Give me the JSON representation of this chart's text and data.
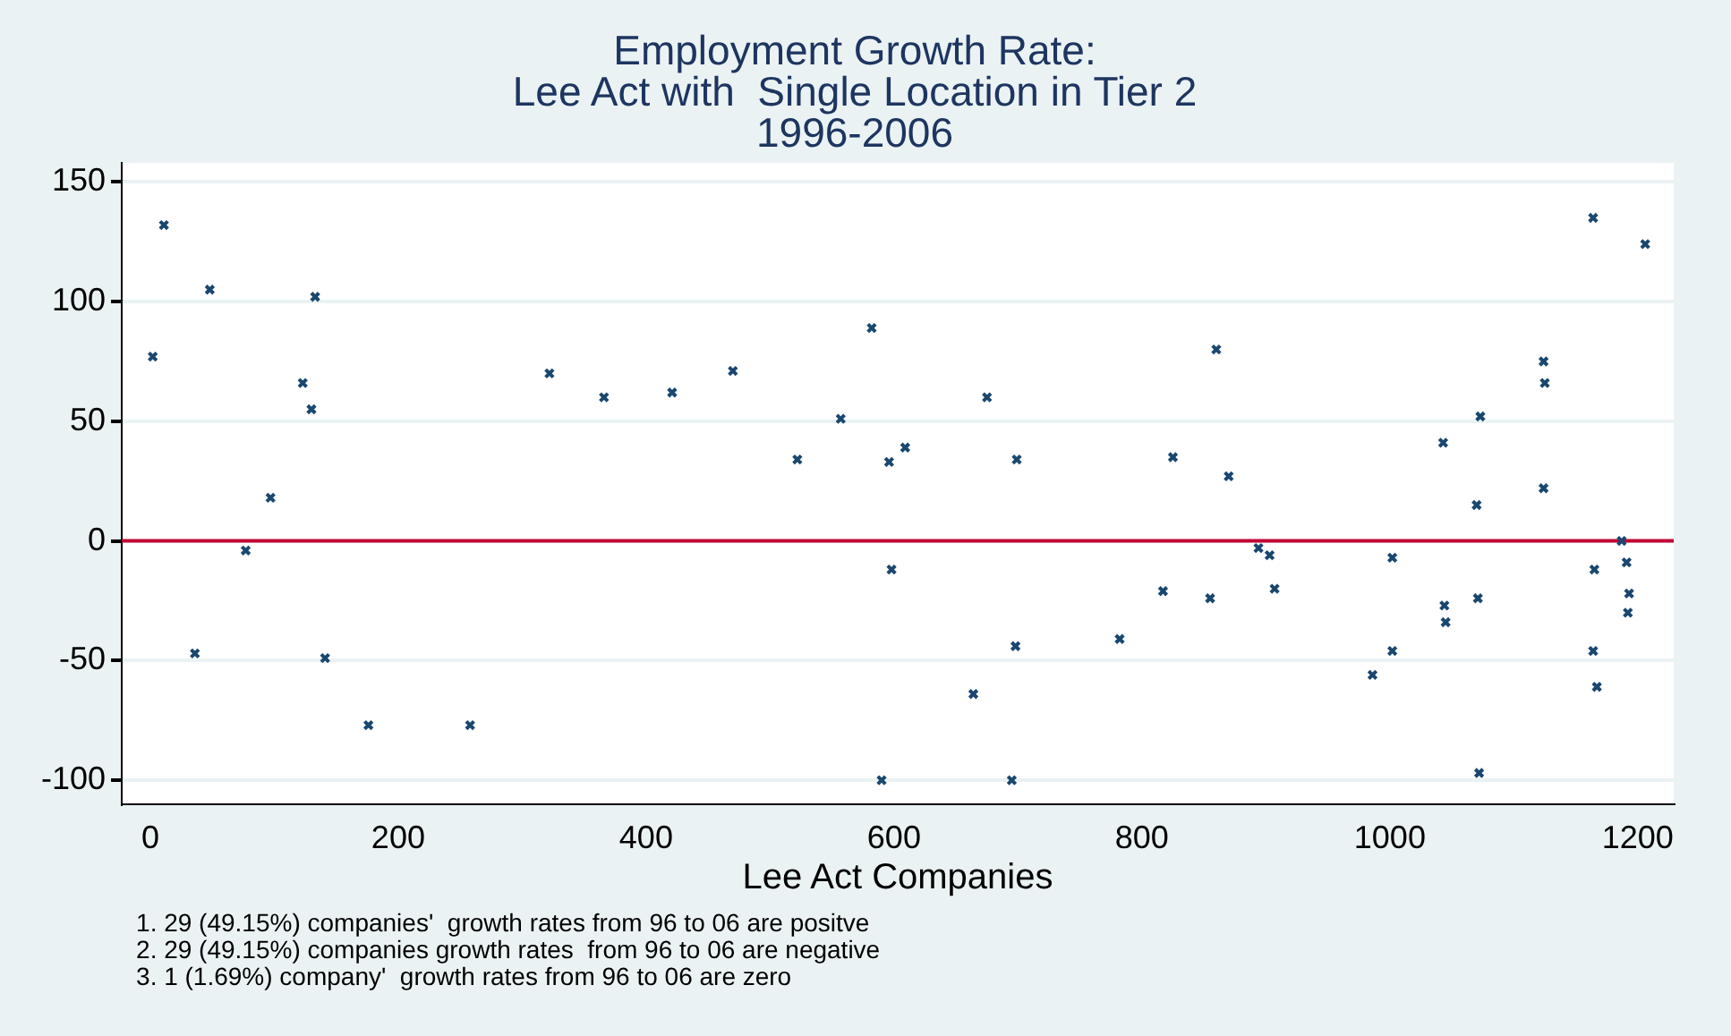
{
  "chart_data": {
    "type": "scatter",
    "title": "Employment Growth Rate:\nLee Act with  Single Location in Tier 2\n1996-2006",
    "xlabel": "Lee Act Companies",
    "x": [
      11,
      48,
      133,
      2,
      123,
      130,
      97,
      77,
      36,
      141,
      176,
      258,
      322,
      366,
      421,
      470,
      522,
      557,
      582,
      596,
      609,
      598,
      590,
      675,
      699,
      698,
      664,
      695,
      782,
      817,
      825,
      860,
      855,
      870,
      894,
      903,
      907,
      986,
      1002,
      1002,
      1043,
      1044,
      1045,
      1073,
      1070,
      1071,
      1072,
      1124,
      1125,
      1124,
      1164,
      1206,
      1187,
      1191,
      1165,
      1193,
      1192,
      1164,
      1167
    ],
    "values": [
      132,
      105,
      102,
      77,
      66,
      55,
      18,
      -4,
      -47,
      -49,
      -77,
      -77,
      70,
      60,
      62,
      71,
      34,
      51,
      89,
      33,
      39,
      -12,
      -100,
      60,
      34,
      -44,
      -64,
      -100,
      -41,
      -21,
      35,
      80,
      -24,
      27,
      -3,
      -6,
      -20,
      -56,
      -7,
      -46,
      41,
      -27,
      -34,
      52,
      15,
      -24,
      -97,
      75,
      66,
      22,
      135,
      124,
      0,
      -9,
      -12,
      -22,
      -30,
      -46,
      -61
    ],
    "color": "#1a476f",
    "marker": "cross",
    "xlim": [
      -23,
      1229
    ],
    "ylim": [
      -110,
      158
    ],
    "xticks": [
      0,
      200,
      400,
      600,
      800,
      1000,
      1200
    ],
    "yticks": [
      -100,
      -50,
      0,
      50,
      100,
      150
    ],
    "grid": "y",
    "ref_lines": [
      {
        "axis": "y",
        "value": 0,
        "color": "#c10534"
      }
    ],
    "annotations": [
      "1. 29 (49.15%) companies'  growth rates from 96 to 06 are positve",
      "2. 29 (49.15%) companies growth rates  from 96 to 06 are negative",
      "3. 1 (1.69%) company'  growth rates from 96 to 06 are zero"
    ]
  }
}
